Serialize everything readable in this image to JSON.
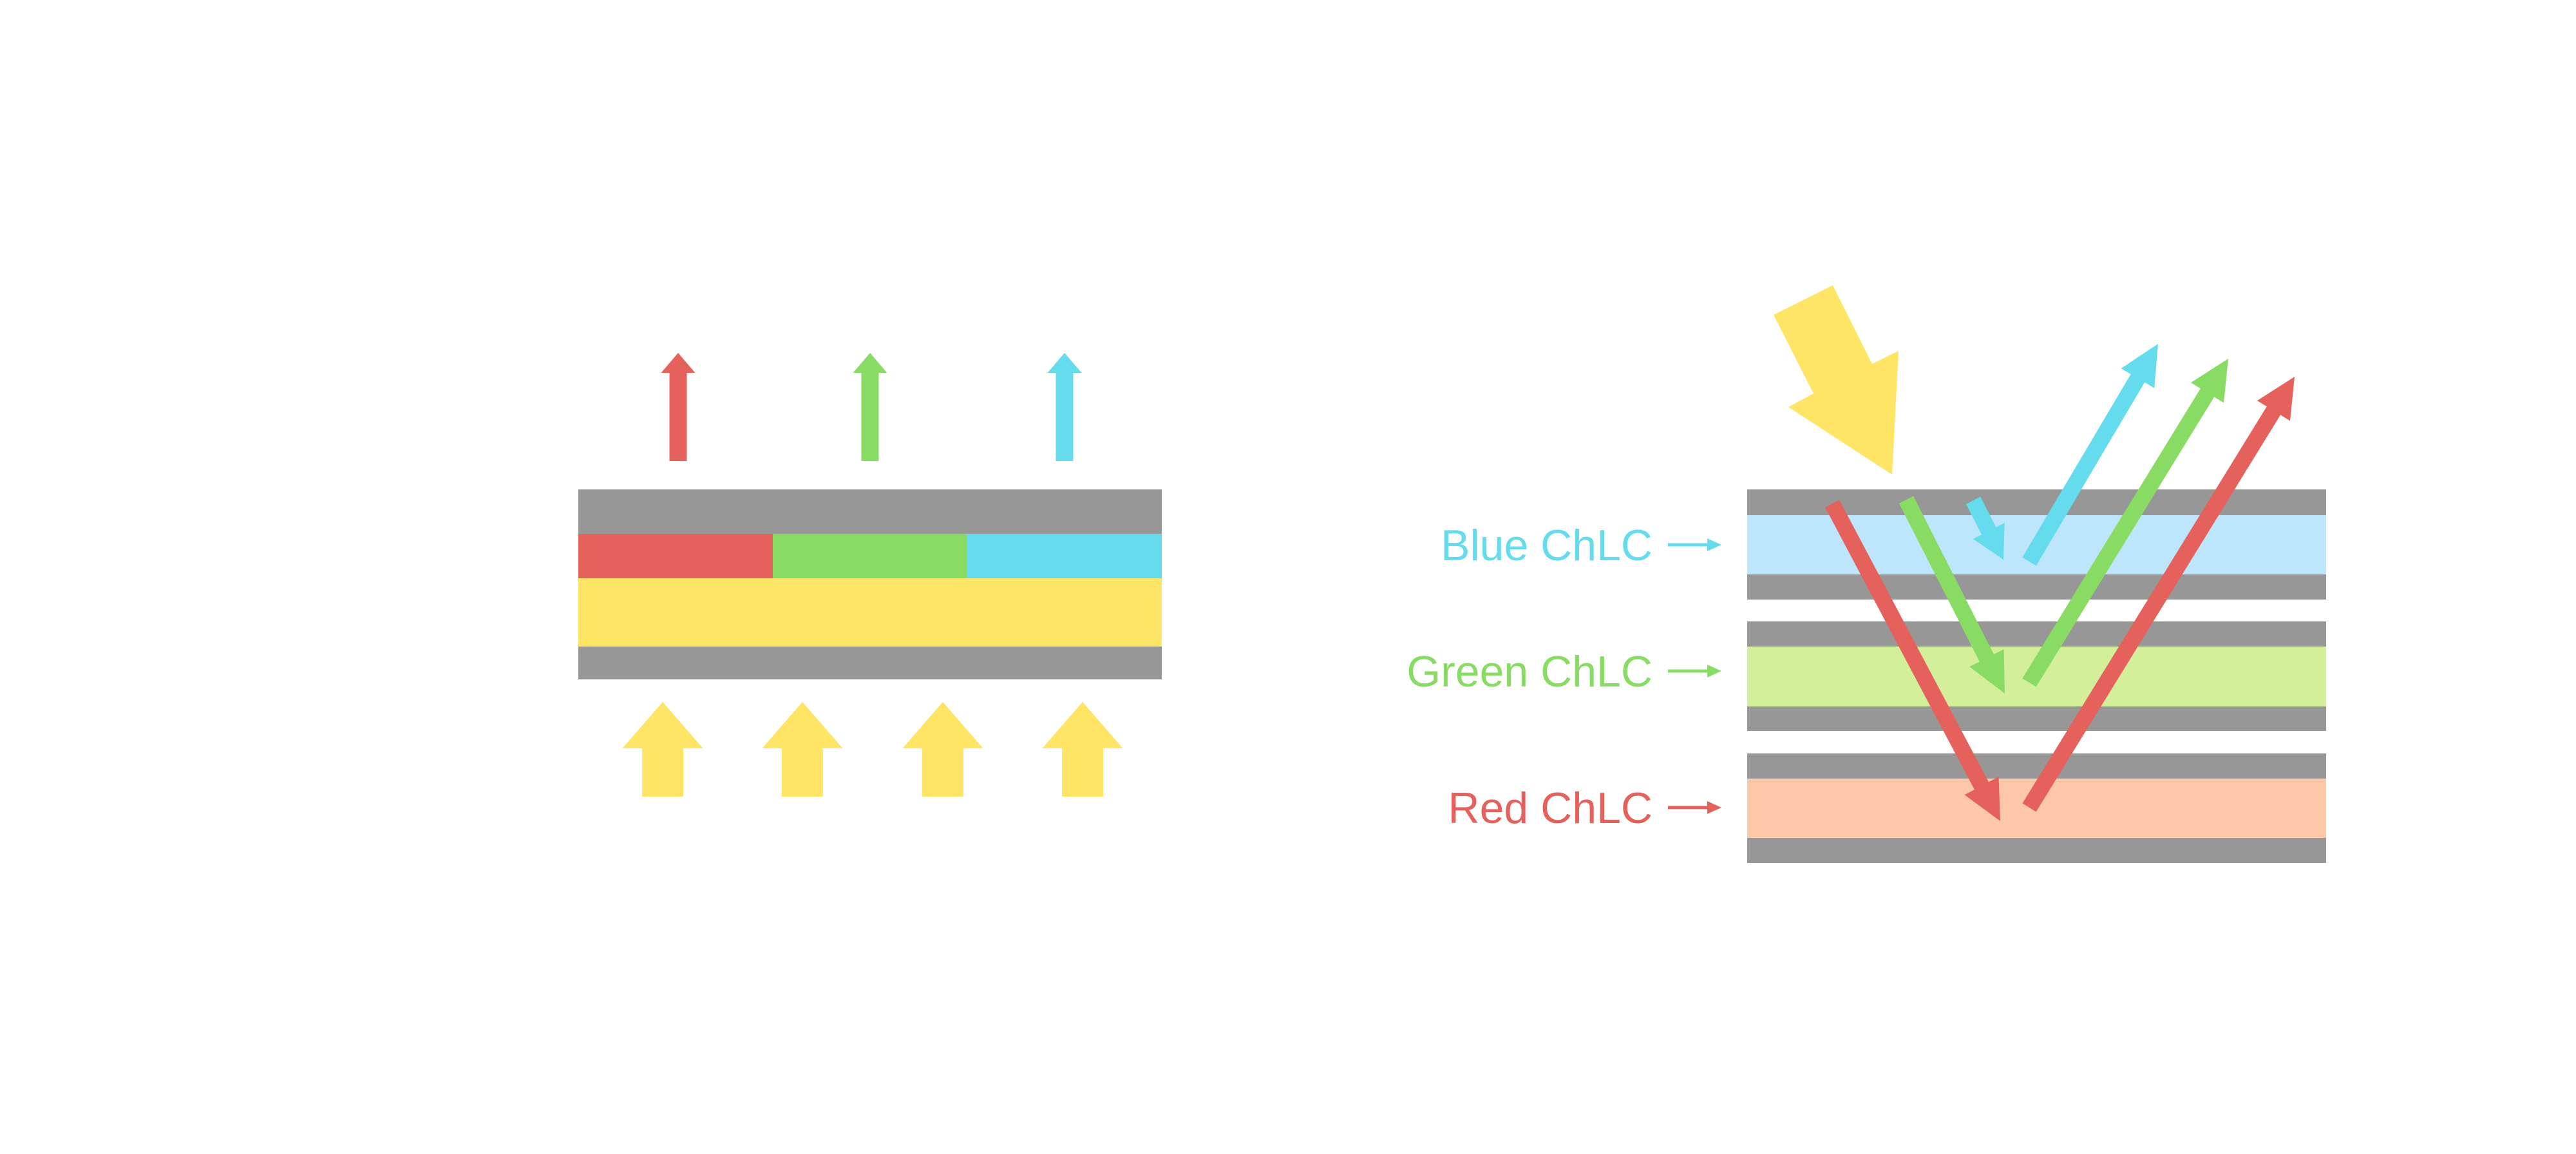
{
  "colors": {
    "red": "#E5615C",
    "green": "#88DC64",
    "blue": "#64DCEE",
    "yellow": "#FFE566",
    "gray": "#979797",
    "blue_layer": "#BDE5FC",
    "green_layer": "#D3EF99",
    "red_layer": "#FDC8A8"
  },
  "right_diagram": {
    "labels": {
      "blue": "Blue ChLC",
      "green": "Green ChLC",
      "red": "Red ChLC"
    }
  }
}
